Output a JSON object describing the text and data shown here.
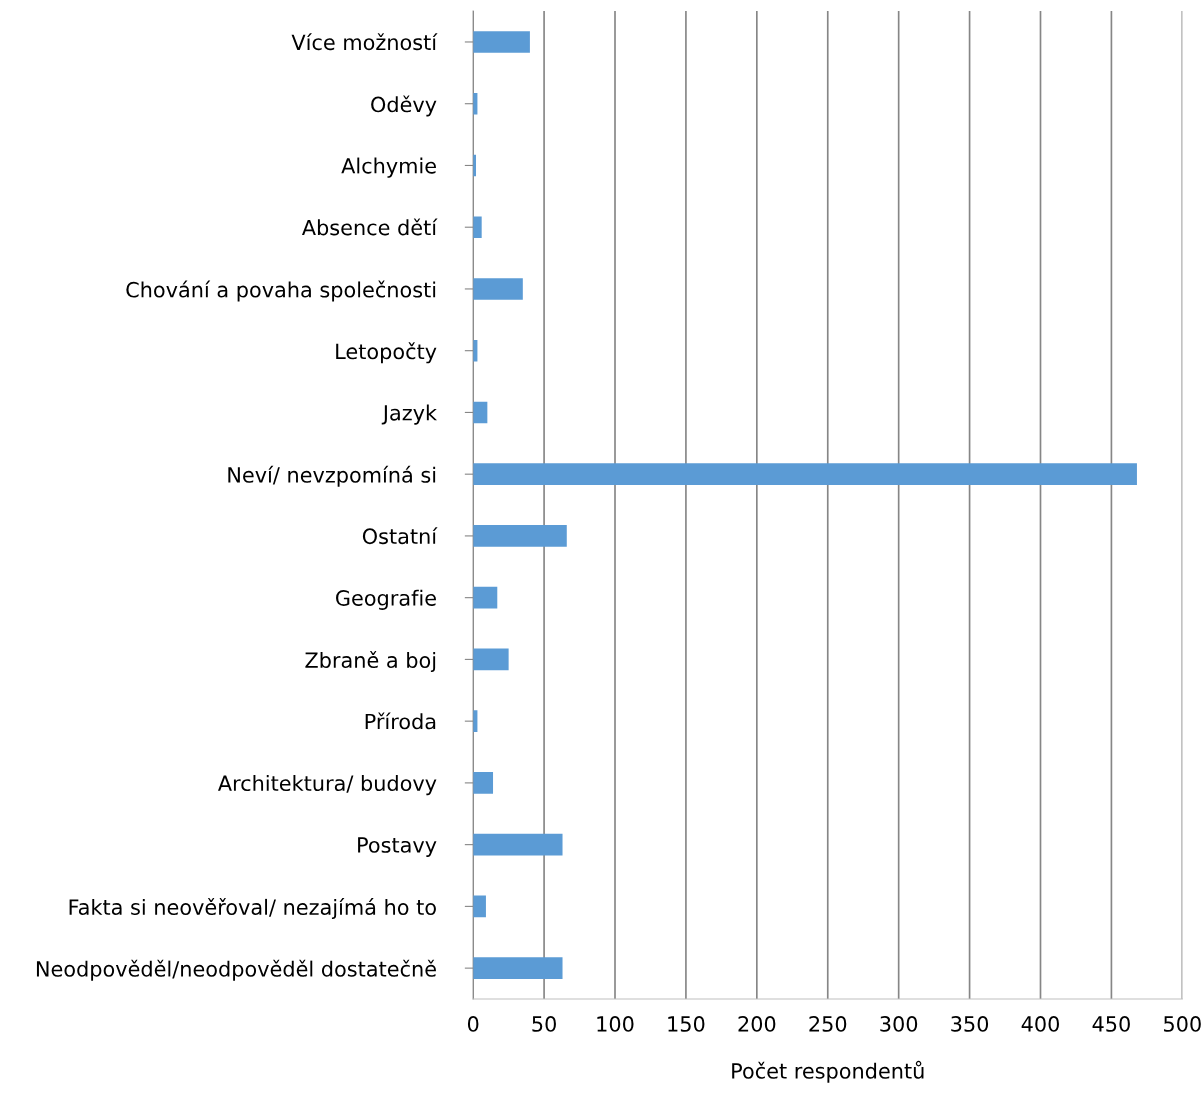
{
  "chart_data": {
    "type": "bar",
    "orientation": "horizontal",
    "xlabel": "Počet respondentů",
    "categories": [
      "Více možností",
      "Oděvy",
      "Alchymie",
      "Absence dětí",
      "Chování a povaha společnosti",
      "Letopočty",
      "Jazyk",
      "Neví/ nevzpomíná si",
      "Ostatní",
      "Geografie",
      "Zbraně a boj",
      "Příroda",
      "Architektura/ budovy",
      "Postavy",
      "Fakta si neověřoval/ nezajímá ho to",
      "Neodpověděl/neodpověděl dostatečně"
    ],
    "values": [
      40,
      3,
      2,
      6,
      35,
      3,
      10,
      468,
      66,
      17,
      25,
      3,
      14,
      63,
      9,
      63
    ],
    "color": "#5b9bd5",
    "xlim": [
      0,
      500
    ],
    "xticks": [
      0,
      50,
      100,
      150,
      200,
      250,
      300,
      350,
      400,
      450,
      500
    ],
    "grid": "x",
    "legend": false
  }
}
